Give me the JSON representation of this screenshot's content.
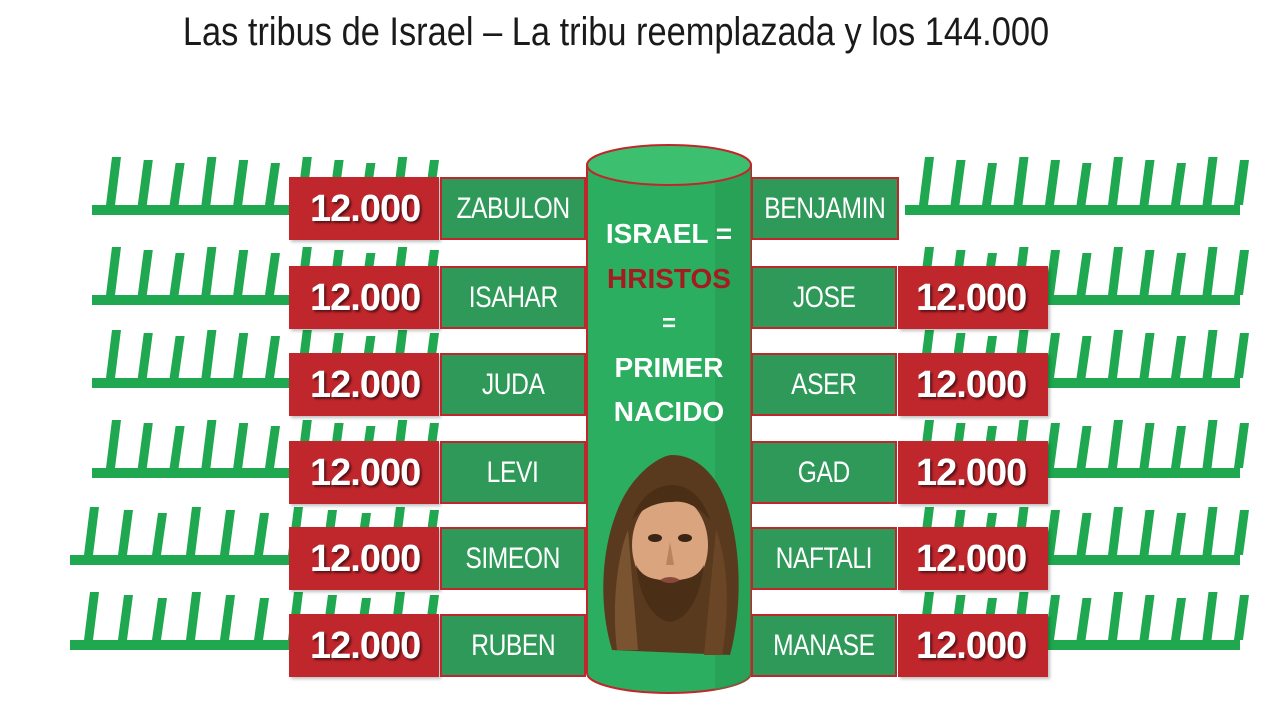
{
  "title": "Las tribus de Israel – La tribu reemplazada y los 144.000",
  "center": {
    "line1": "ISRAEL =",
    "line2": "HRISTOS",
    "line3": "=",
    "line4": "PRIMER",
    "line5": "NACIDO",
    "portrait_icon": "jesus-portrait"
  },
  "left_tribes": [
    {
      "count": "12.000",
      "name": "ZABULON"
    },
    {
      "count": "12.000",
      "name": "ISAHAR"
    },
    {
      "count": "12.000",
      "name": "JUDA"
    },
    {
      "count": "12.000",
      "name": "LEVI"
    },
    {
      "count": "12.000",
      "name": "SIMEON"
    },
    {
      "count": "12.000",
      "name": "RUBEN"
    }
  ],
  "right_tribes": [
    {
      "count": "",
      "name": "BENJAMIN"
    },
    {
      "count": "12.000",
      "name": "JOSE"
    },
    {
      "count": "12.000",
      "name": "ASER"
    },
    {
      "count": "12.000",
      "name": "GAD"
    },
    {
      "count": "12.000",
      "name": "NAFTALI"
    },
    {
      "count": "12.000",
      "name": "MANASE"
    }
  ],
  "colors": {
    "green": "#2e9958",
    "comb_green": "#1fa84f",
    "red": "#c0272d",
    "pillar": "#27ae60",
    "highlight_text": "#a51c20"
  }
}
